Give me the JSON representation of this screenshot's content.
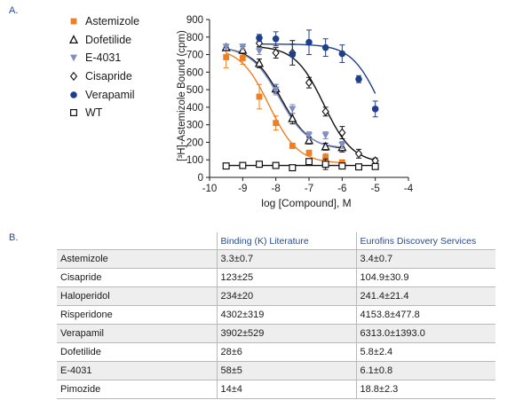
{
  "panels": {
    "a": "A.",
    "b": "B."
  },
  "chart_data": {
    "type": "scatter",
    "xlabel": "log [Compound], M",
    "ylabel": "[³H]-Astemizole Bound (cpm)",
    "xlim": [
      -10,
      -4
    ],
    "ylim": [
      0,
      900
    ],
    "xticks": [
      -10,
      -9,
      -8,
      -7,
      -6,
      -5,
      -4
    ],
    "yticks": [
      0,
      100,
      200,
      300,
      400,
      500,
      600,
      700,
      800,
      900
    ],
    "grid": false,
    "legend_position": "top-left",
    "series": [
      {
        "name": "Astemizole",
        "color": "#f07f22",
        "marker": "filled-square",
        "x": [
          -9.5,
          -9,
          -8.5,
          -8,
          -7.5,
          -7,
          -6.5,
          -6
        ],
        "y": [
          685,
          680,
          460,
          310,
          180,
          140,
          115,
          85
        ],
        "err": [
          60,
          35,
          70,
          40,
          15,
          15,
          20,
          15
        ],
        "fit": {
          "top": 740,
          "bottom": 80,
          "ec50": -8.2,
          "hill": 1.0
        }
      },
      {
        "name": "Dofetilide",
        "color": "#111111",
        "marker": "open-triangle",
        "x": [
          -9.5,
          -9,
          -8.5,
          -8,
          -7.5,
          -7,
          -6.5,
          -6
        ],
        "y": [
          740,
          725,
          650,
          505,
          335,
          210,
          175,
          170
        ],
        "err": [
          15,
          20,
          25,
          25,
          30,
          20,
          20,
          25
        ],
        "fit": {
          "top": 745,
          "bottom": 160,
          "ec50": -7.85,
          "hill": 1.0
        }
      },
      {
        "name": "E-4031",
        "color": "#7f8fc5",
        "marker": "filled-triangle-down",
        "x": [
          -9.5,
          -9,
          -8.5,
          -8,
          -7.5,
          -7,
          -6.5,
          -6
        ],
        "y": [
          745,
          745,
          720,
          500,
          390,
          240,
          240,
          185
        ],
        "err": [
          10,
          15,
          20,
          30,
          25,
          20,
          20,
          20
        ],
        "fit": {
          "top": 745,
          "bottom": 165,
          "ec50": -7.9,
          "hill": 1.0
        }
      },
      {
        "name": "Cisapride",
        "color": "#111111",
        "marker": "open-diamond",
        "x": [
          -8.5,
          -8,
          -7.5,
          -7,
          -6.5,
          -6,
          -5.5,
          -5
        ],
        "y": [
          765,
          710,
          710,
          540,
          375,
          255,
          135,
          95
        ],
        "err": [
          20,
          30,
          70,
          30,
          25,
          35,
          25,
          15
        ],
        "fit": {
          "top": 750,
          "bottom": 80,
          "ec50": -6.55,
          "hill": 1.0
        }
      },
      {
        "name": "Verapamil",
        "color": "#1f3f8c",
        "marker": "filled-circle",
        "x": [
          -8.5,
          -8,
          -7.5,
          -7,
          -6.5,
          -6,
          -5.5,
          -5
        ],
        "y": [
          795,
          790,
          700,
          770,
          740,
          705,
          560,
          390
        ],
        "err": [
          20,
          40,
          60,
          70,
          50,
          50,
          20,
          45
        ],
        "fit": {
          "top": 760,
          "bottom": 80,
          "ec50": -4.85,
          "hill": 1.0
        }
      },
      {
        "name": "WT",
        "color": "#111111",
        "marker": "open-square",
        "x": [
          -9.5,
          -9,
          -8.5,
          -8,
          -7.5,
          -7,
          -6.5,
          -6,
          -5.5,
          -5
        ],
        "y": [
          65,
          68,
          75,
          68,
          55,
          90,
          75,
          65,
          60,
          62
        ],
        "err": [
          10,
          10,
          10,
          10,
          10,
          15,
          30,
          10,
          10,
          15
        ],
        "fit": {
          "top": 68,
          "bottom": 68,
          "ec50": -7,
          "hill": 1.0
        }
      }
    ]
  },
  "table": {
    "headers": [
      "",
      "Binding (K) Literature",
      "Eurofins Discovery Services"
    ],
    "rows": [
      [
        "Astemizole",
        "3.3±0.7",
        "3.4±0.7"
      ],
      [
        "Cisapride",
        "123±25",
        "104.9±30.9"
      ],
      [
        "Haloperidol",
        "234±20",
        "241.4±21.4"
      ],
      [
        "Risperidone",
        "4302±319",
        "4153.8±477.8"
      ],
      [
        "Verapamil",
        "3902±529",
        "6313.0±1393.0"
      ],
      [
        "Dofetilide",
        "28±6",
        "5.8±2.4"
      ],
      [
        "E-4031",
        "58±5",
        "6.1±0.8"
      ],
      [
        "Pimozide",
        "14±4",
        "18.8±2.3"
      ]
    ]
  }
}
